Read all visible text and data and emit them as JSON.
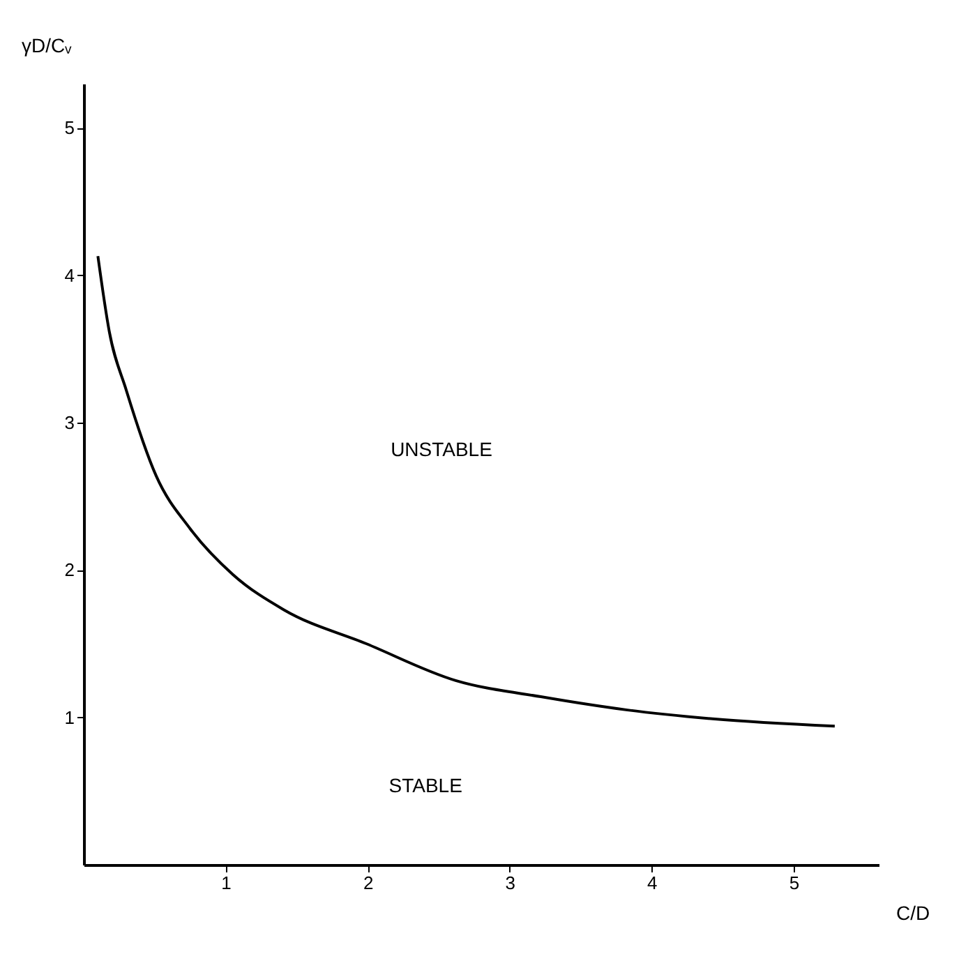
{
  "chart_data": {
    "type": "line",
    "xlabel": "C/D",
    "ylabel": "γD/Cᵥ",
    "xlim": [
      0,
      5.6
    ],
    "ylim": [
      0,
      5.3
    ],
    "xticks": [
      1,
      2,
      3,
      4,
      5
    ],
    "yticks": [
      1,
      2,
      3,
      4,
      5
    ],
    "grid": false,
    "marker": "none",
    "line_style": "solid",
    "annotations": [
      "UNSTABLE",
      "STABLE"
    ],
    "series": [
      {
        "color": "#000000",
        "x": [
          0.1,
          0.18,
          0.3,
          0.51,
          0.75,
          1.05,
          1.41,
          1.99,
          2.62,
          3.22,
          3.83,
          4.43,
          5.29
        ],
        "values": [
          4.13,
          3.62,
          3.22,
          2.64,
          2.28,
          1.97,
          1.73,
          1.5,
          1.25,
          1.14,
          1.05,
          0.99,
          0.94
        ]
      }
    ]
  }
}
